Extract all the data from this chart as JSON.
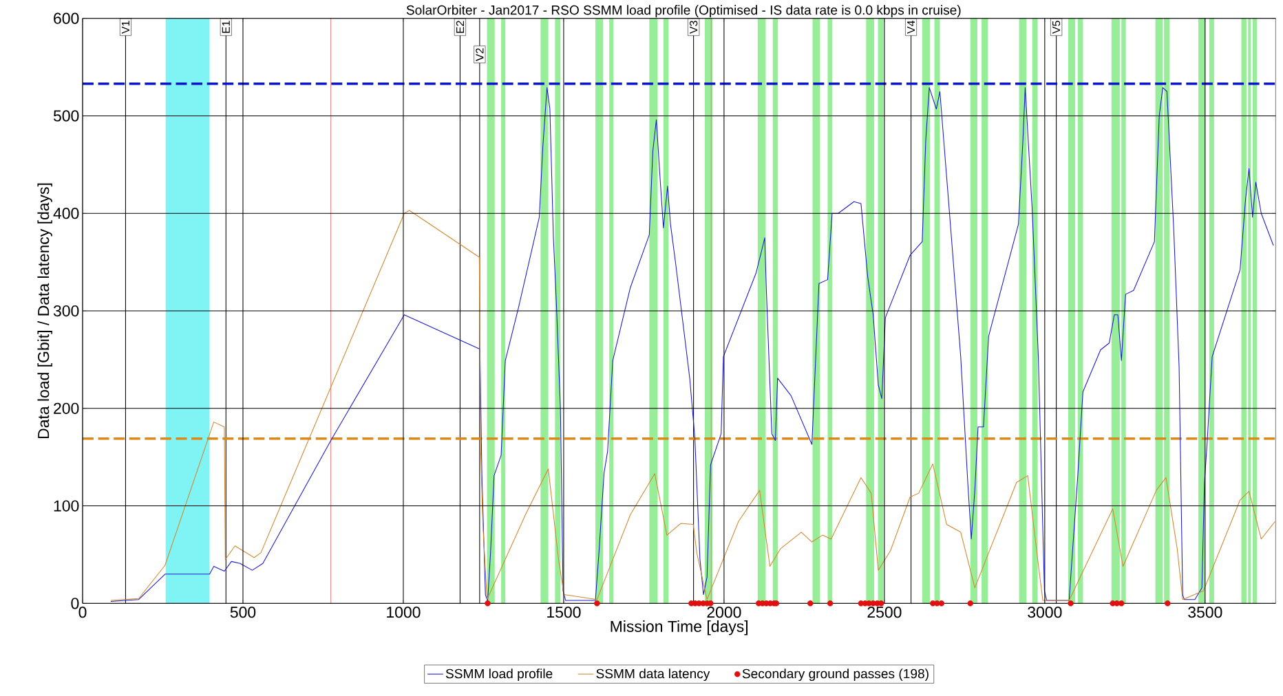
{
  "chart_data": {
    "type": "line",
    "title": "SolarOrbiter - Jan2017 - RSO SSMM load profile (Optimised - IS data rate is 0.0 kbps in cruise)",
    "xlabel": "Mission Time [days]",
    "ylabel": "Data load [Gbit] / Data latency [days]",
    "xlim": [
      0,
      3720
    ],
    "ylim": [
      0,
      600
    ],
    "xticks": [
      0,
      500,
      1000,
      1500,
      2000,
      2500,
      3000,
      3500
    ],
    "yticks": [
      0,
      100,
      200,
      300,
      400,
      500,
      600
    ],
    "grid": true,
    "legend": "bottom",
    "series": [
      {
        "name": "SSMM load profile",
        "color": "#1a1acc",
        "marker": "none",
        "x": [
          88,
          175,
          257,
          396,
          409,
          442,
          464,
          491,
          529,
          562,
          774,
          1003,
          1237,
          1239,
          1245,
          1256,
          1263,
          1272,
          1283,
          1305,
          1318,
          1359,
          1424,
          1435,
          1448,
          1457,
          1468,
          1477,
          1490,
          1498,
          1506,
          1599,
          1610,
          1626,
          1637,
          1653,
          1708,
          1767,
          1778,
          1789,
          1800,
          1811,
          1824,
          1833,
          1849,
          1893,
          1909,
          1925,
          1936,
          1947,
          1958,
          1991,
          1998,
          2100,
          2116,
          2127,
          2132,
          2149,
          2160,
          2167,
          2209,
          2274,
          2296,
          2323,
          2337,
          2356,
          2405,
          2427,
          2448,
          2465,
          2481,
          2492,
          2503,
          2580,
          2618,
          2629,
          2640,
          2662,
          2673,
          2705,
          2738,
          2760,
          2771,
          2782,
          2792,
          2809,
          2825,
          2918,
          2932,
          2939,
          2961,
          2980,
          2999,
          3006,
          3076,
          3103,
          3119,
          3174,
          3201,
          3217,
          3228,
          3239,
          3252,
          3277,
          3342,
          3357,
          3368,
          3381,
          3402,
          3419,
          3430,
          3435,
          3468,
          3490,
          3498,
          3506,
          3522,
          3609,
          3626,
          3637,
          3648,
          3658,
          3675,
          3713
        ],
        "values": [
          2,
          4,
          30,
          30,
          38,
          33,
          43,
          41,
          34,
          41,
          167,
          296,
          261,
          260,
          131,
          9,
          2,
          52,
          131,
          152,
          249,
          303,
          396,
          468,
          529,
          507,
          375,
          310,
          199,
          13,
          3,
          3,
          52,
          134,
          156,
          249,
          324,
          378,
          464,
          496,
          439,
          385,
          428,
          389,
          349,
          231,
          170,
          45,
          9,
          27,
          142,
          174,
          253,
          339,
          360,
          375,
          321,
          174,
          167,
          231,
          213,
          163,
          328,
          332,
          400,
          400,
          412,
          410,
          335,
          296,
          224,
          210,
          293,
          357,
          371,
          475,
          529,
          507,
          525,
          392,
          253,
          124,
          66,
          116,
          181,
          181,
          274,
          389,
          475,
          529,
          403,
          253,
          13,
          3,
          3,
          131,
          217,
          260,
          267,
          296,
          296,
          249,
          317,
          321,
          371,
          500,
          529,
          525,
          385,
          242,
          9,
          4,
          4,
          16,
          124,
          163,
          253,
          342,
          414,
          446,
          396,
          432,
          400,
          367
        ]
      },
      {
        "name": "SSMM data latency",
        "color": "#d2862d",
        "marker": "none",
        "x": [
          88,
          175,
          257,
          409,
          442,
          445,
          475,
          535,
          556,
          1003,
          1019,
          1237,
          1241,
          1248,
          1261,
          1381,
          1452,
          1484,
          1501,
          1604,
          1708,
          1784,
          1822,
          1865,
          1904,
          1915,
          1947,
          2045,
          2111,
          2143,
          2176,
          2241,
          2274,
          2307,
          2334,
          2427,
          2459,
          2481,
          2519,
          2580,
          2607,
          2651,
          2694,
          2738,
          2782,
          2912,
          2947,
          2978,
          2994,
          3076,
          3212,
          3244,
          3348,
          3378,
          3413,
          3430,
          3495,
          3609,
          3637,
          3675,
          3718
        ],
        "values": [
          3,
          5,
          39,
          186,
          181,
          45,
          59,
          47,
          52,
          400,
          403,
          355,
          159,
          81,
          4,
          91,
          138,
          45,
          9,
          4,
          91,
          133,
          70,
          82,
          81,
          52,
          4,
          84,
          116,
          38,
          56,
          73,
          63,
          70,
          66,
          129,
          113,
          34,
          54,
          109,
          113,
          143,
          81,
          73,
          16,
          124,
          131,
          45,
          3,
          3,
          97,
          38,
          116,
          129,
          56,
          4,
          13,
          106,
          115,
          66,
          84
        ]
      },
      {
        "name": "Secondary ground passes (198)",
        "type": "scatter",
        "color": "#e01010",
        "marker": "circle",
        "x": [
          1263,
          1604,
          1898,
          1910,
          1922,
          1935,
          1947,
          1958,
          2108,
          2120,
          2132,
          2144,
          2156,
          2163,
          2269,
          2331,
          2427,
          2440,
          2452,
          2465,
          2478,
          2490,
          2651,
          2664,
          2678,
          2768,
          3081,
          3212,
          3225,
          3239,
          3383
        ],
        "values": [
          0,
          0,
          0,
          0,
          0,
          0,
          0,
          0,
          0,
          0,
          0,
          0,
          0,
          0,
          0,
          0,
          0,
          0,
          0,
          0,
          0,
          0,
          0,
          0,
          0,
          0,
          0,
          0,
          0,
          0,
          0
        ]
      }
    ],
    "bands": [
      {
        "axis": "x",
        "from": 259,
        "to": 396,
        "color": "#80f4f4"
      },
      {
        "axis": "x",
        "from": 1261,
        "to": 1285,
        "color": "#98ee98"
      },
      {
        "axis": "x",
        "from": 1305,
        "to": 1318,
        "color": "#98ee98"
      },
      {
        "axis": "x",
        "from": 1428,
        "to": 1452,
        "color": "#98ee98"
      },
      {
        "axis": "x",
        "from": 1473,
        "to": 1490,
        "color": "#98ee98"
      },
      {
        "axis": "x",
        "from": 1599,
        "to": 1623,
        "color": "#98ee98"
      },
      {
        "axis": "x",
        "from": 1642,
        "to": 1655,
        "color": "#98ee98"
      },
      {
        "axis": "x",
        "from": 1767,
        "to": 1793,
        "color": "#98ee98"
      },
      {
        "axis": "x",
        "from": 1811,
        "to": 1827,
        "color": "#98ee98"
      },
      {
        "axis": "x",
        "from": 1940,
        "to": 1964,
        "color": "#98ee98"
      },
      {
        "axis": "x",
        "from": 2105,
        "to": 2130,
        "color": "#98ee98"
      },
      {
        "axis": "x",
        "from": 2152,
        "to": 2168,
        "color": "#98ee98"
      },
      {
        "axis": "x",
        "from": 2276,
        "to": 2299,
        "color": "#98ee98"
      },
      {
        "axis": "x",
        "from": 2323,
        "to": 2337,
        "color": "#98ee98"
      },
      {
        "axis": "x",
        "from": 2443,
        "to": 2468,
        "color": "#98ee98"
      },
      {
        "axis": "x",
        "from": 2480,
        "to": 2497,
        "color": "#98ee98"
      },
      {
        "axis": "x",
        "from": 2618,
        "to": 2642,
        "color": "#98ee98"
      },
      {
        "axis": "x",
        "from": 2656,
        "to": 2673,
        "color": "#98ee98"
      },
      {
        "axis": "x",
        "from": 2768,
        "to": 2790,
        "color": "#98ee98"
      },
      {
        "axis": "x",
        "from": 2803,
        "to": 2823,
        "color": "#98ee98"
      },
      {
        "axis": "x",
        "from": 2920,
        "to": 2943,
        "color": "#98ee98"
      },
      {
        "axis": "x",
        "from": 2961,
        "to": 2978,
        "color": "#98ee98"
      },
      {
        "axis": "x",
        "from": 3073,
        "to": 3095,
        "color": "#98ee98"
      },
      {
        "axis": "x",
        "from": 3103,
        "to": 3119,
        "color": "#98ee98"
      },
      {
        "axis": "x",
        "from": 3208,
        "to": 3234,
        "color": "#98ee98"
      },
      {
        "axis": "x",
        "from": 3239,
        "to": 3253,
        "color": "#98ee98"
      },
      {
        "axis": "x",
        "from": 3345,
        "to": 3368,
        "color": "#98ee98"
      },
      {
        "axis": "x",
        "from": 3372,
        "to": 3389,
        "color": "#98ee98"
      },
      {
        "axis": "x",
        "from": 3479,
        "to": 3500,
        "color": "#98ee98"
      },
      {
        "axis": "x",
        "from": 3513,
        "to": 3528,
        "color": "#98ee98"
      },
      {
        "axis": "x",
        "from": 3613,
        "to": 3629,
        "color": "#98ee98"
      },
      {
        "axis": "x",
        "from": 3634,
        "to": 3642,
        "color": "#98ee98"
      },
      {
        "axis": "x",
        "from": 3648,
        "to": 3662,
        "color": "#98ee98"
      }
    ],
    "ref_lines": [
      {
        "axis": "x",
        "value": 774,
        "color": "#f08080"
      },
      {
        "axis": "x",
        "value": 1960,
        "color": "#f08080"
      },
      {
        "axis": "x",
        "value": 134,
        "label": "V1",
        "color": "#000000"
      },
      {
        "axis": "x",
        "value": 447,
        "label": "E1",
        "color": "#000000"
      },
      {
        "axis": "x",
        "value": 1177,
        "label": "E2",
        "color": "#000000"
      },
      {
        "axis": "x",
        "value": 1238,
        "label": "V2",
        "color": "#000000"
      },
      {
        "axis": "x",
        "value": 1905,
        "label": "V3",
        "color": "#000000"
      },
      {
        "axis": "x",
        "value": 2583,
        "label": "V4",
        "color": "#000000"
      },
      {
        "axis": "x",
        "value": 3036,
        "label": "V5",
        "color": "#000000"
      },
      {
        "axis": "y",
        "value": 533,
        "color": "#0a14c8",
        "line_style": "dashed"
      },
      {
        "axis": "y",
        "value": 169,
        "color": "#d98a1a",
        "line_style": "dashed"
      }
    ]
  }
}
